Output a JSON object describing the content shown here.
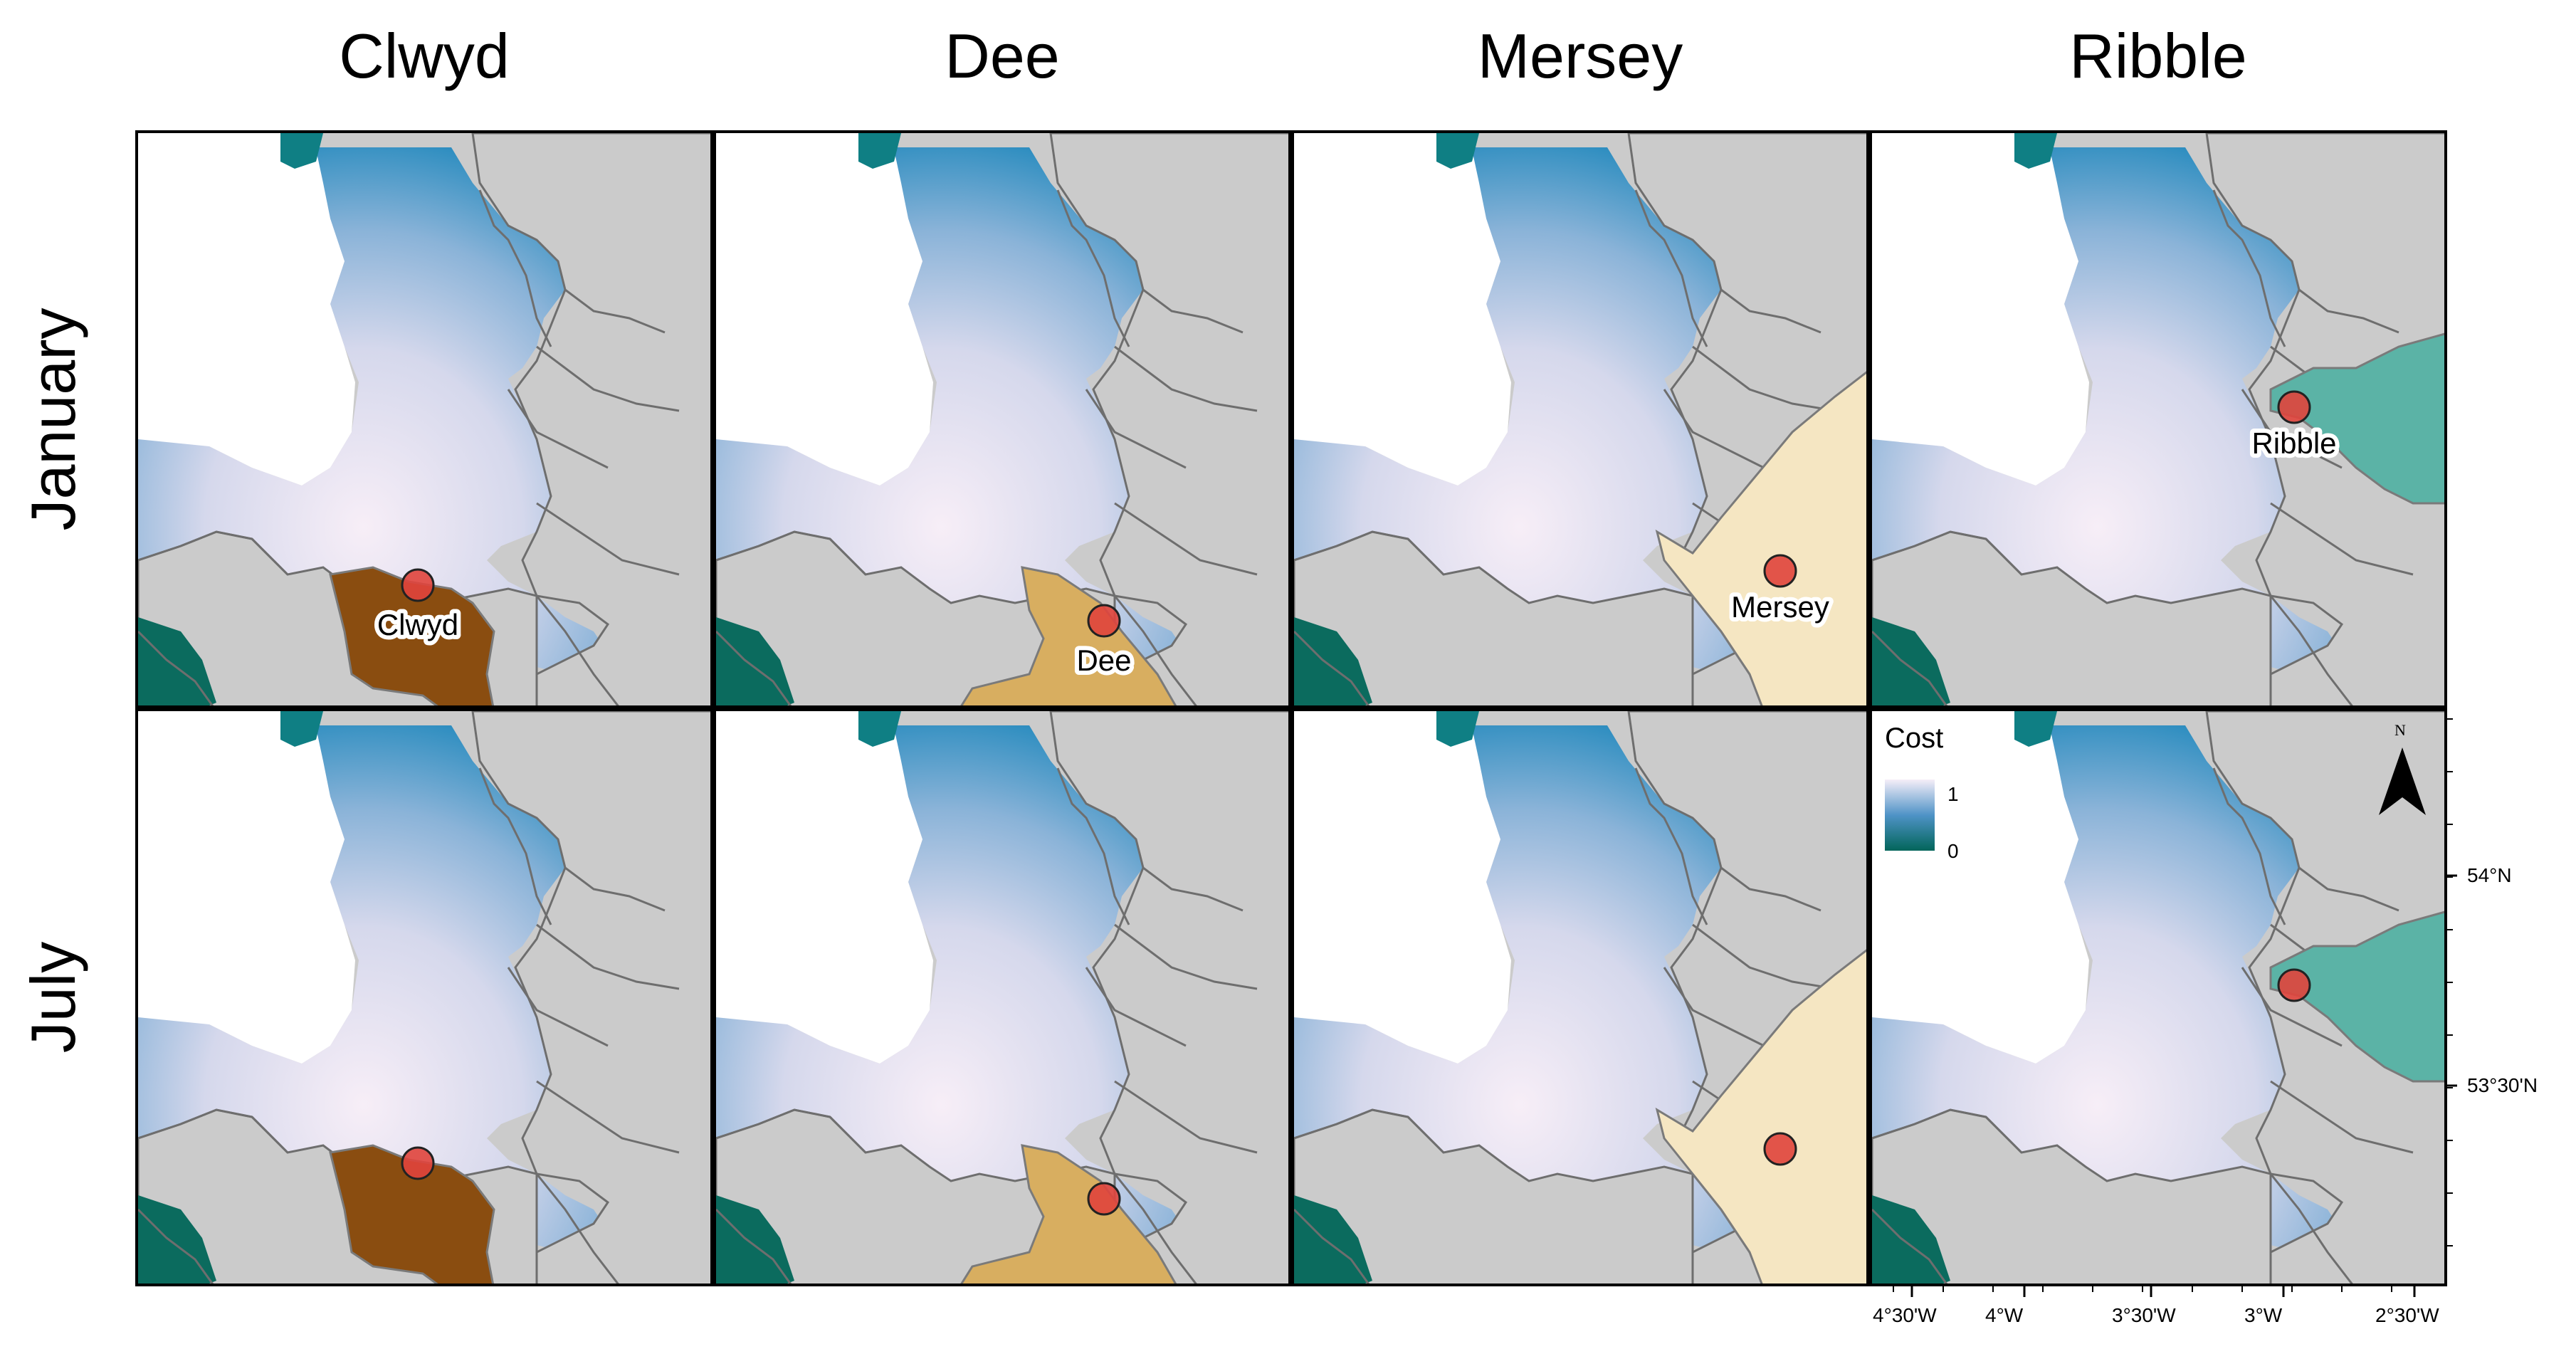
{
  "columns": [
    {
      "title": "Clwyd",
      "site_label": "Clwyd",
      "catchment_color": "#8a4d10"
    },
    {
      "title": "Dee",
      "site_label": "Dee",
      "catchment_color": "#d8ae60"
    },
    {
      "title": "Mersey",
      "site_label": "Mersey",
      "catchment_color": "#f5e6c2"
    },
    {
      "title": "Ribble",
      "site_label": "Ribble",
      "catchment_color": "#5bb3a6"
    }
  ],
  "rows": [
    {
      "title": "January",
      "show_site_labels": true
    },
    {
      "title": "July",
      "show_site_labels": false
    }
  ],
  "legend": {
    "title": "Cost",
    "tick_high": "1",
    "tick_low": "0",
    "color_high": "#f5eef8",
    "color_mid": "#4f93c7",
    "color_low": "#02655a"
  },
  "north_arrow": {
    "label": "N"
  },
  "axes": {
    "x_ticks": [
      "4°30'W",
      "4°W",
      "3°30'W",
      "3°W",
      "2°30'W"
    ],
    "y_ticks": [
      "54°N",
      "53°30'N"
    ]
  },
  "colors": {
    "land": "#cbcbcb",
    "coast": "#6e6e6e",
    "site_marker": "#e0443c",
    "sea_deep": "#2a8cbf",
    "sea_light": "#f7eef7"
  }
}
